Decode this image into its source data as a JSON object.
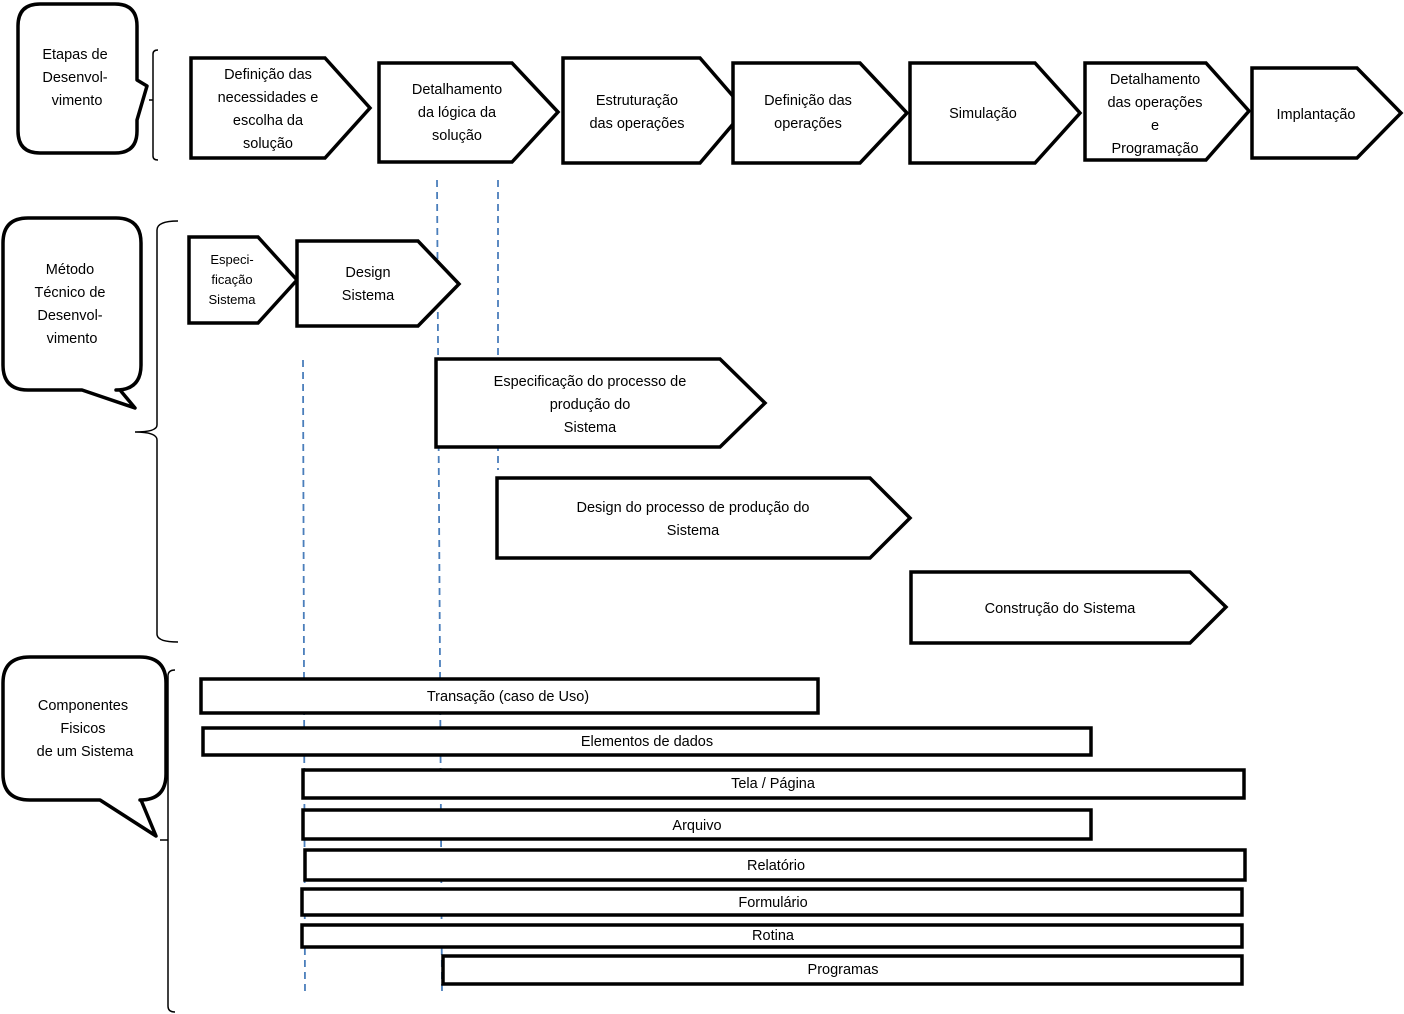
{
  "colors": {
    "outline": "#000000",
    "guide_lines": "#4a7ebb",
    "background": "#ffffff"
  },
  "callouts": {
    "etapas": [
      "Etapas de",
      "Desenvol-",
      "vimento"
    ],
    "metodo": [
      "Método",
      "Técnico de",
      "Desenvol-",
      "vimento"
    ],
    "componentes": [
      "Componentes",
      "Fisicos",
      "de um Sistema"
    ]
  },
  "etapas": [
    {
      "lines": [
        "Definição das",
        "necessidades e",
        "escolha da",
        "solução"
      ]
    },
    {
      "lines": [
        "Detalhamento",
        "da lógica da",
        "solução"
      ]
    },
    {
      "lines": [
        "Estruturação",
        "das operações"
      ]
    },
    {
      "lines": [
        "Definição das",
        "operações"
      ]
    },
    {
      "lines": [
        "Simulação"
      ]
    },
    {
      "lines": [
        "Detalhamento",
        "das operações",
        "e",
        "Programação"
      ]
    },
    {
      "lines": [
        "Implantação"
      ]
    }
  ],
  "metodo": [
    {
      "lines": [
        "Especi-",
        "ficação",
        "Sistema"
      ]
    },
    {
      "lines": [
        "Design",
        "Sistema"
      ]
    },
    {
      "lines": [
        "Especificação do processo de",
        "produção do",
        "Sistema"
      ]
    },
    {
      "lines": [
        "Design do processo de produção do",
        "Sistema"
      ]
    },
    {
      "lines": [
        "Construção do Sistema"
      ]
    }
  ],
  "componentes": [
    "Transação  (caso de Uso)",
    "Elementos de dados",
    "Tela / Página",
    "Arquivo",
    "Relatório",
    "Formulário",
    "Rotina",
    "Programas"
  ]
}
